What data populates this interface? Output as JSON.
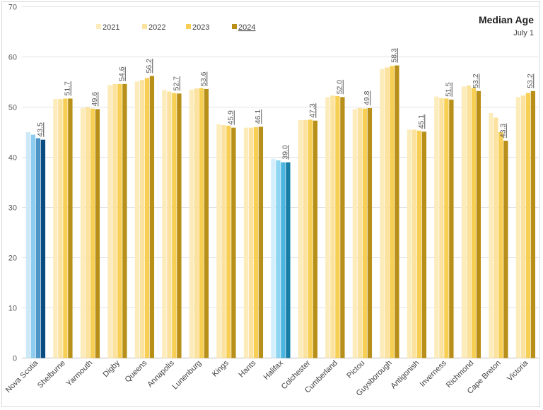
{
  "chart_data": {
    "type": "bar",
    "title": "Median Age",
    "subtitle": "July 1",
    "xlabel": "",
    "ylabel": "",
    "ylim": [
      0,
      70
    ],
    "yticks": [
      0,
      10,
      20,
      30,
      40,
      50,
      60,
      70
    ],
    "grid": true,
    "legend_position": "top-center",
    "categories": [
      "Nova Scotia",
      "Shelburne",
      "Yarmouth",
      "Digby",
      "Queens",
      "Annapolis",
      "Lunenburg",
      "Kings",
      "Hants",
      "Halifax",
      "Colchester",
      "Cumberland",
      "Pictou",
      "Guysborough",
      "Antigonish",
      "Inverness",
      "Richmond",
      "Cape Breton",
      "Victoria"
    ],
    "series": [
      {
        "name": "2021",
        "values": [
          45.0,
          51.6,
          49.8,
          54.4,
          55.1,
          53.4,
          53.5,
          46.6,
          45.9,
          39.7,
          47.4,
          52.0,
          49.6,
          57.6,
          45.5,
          52.1,
          54.1,
          48.8,
          52.0
        ]
      },
      {
        "name": "2022",
        "values": [
          44.5,
          51.6,
          50.0,
          54.6,
          55.4,
          53.1,
          53.7,
          46.4,
          45.9,
          39.4,
          47.4,
          52.3,
          49.8,
          57.9,
          45.5,
          51.8,
          54.3,
          47.9,
          52.3
        ]
      },
      {
        "name": "2023",
        "values": [
          43.8,
          51.7,
          49.7,
          54.6,
          55.8,
          52.8,
          53.8,
          46.3,
          46.0,
          39.0,
          47.5,
          52.2,
          49.7,
          58.2,
          45.3,
          51.7,
          53.8,
          45.0,
          52.8
        ]
      },
      {
        "name": "2024",
        "values": [
          43.5,
          51.7,
          49.6,
          54.6,
          56.2,
          52.7,
          53.6,
          45.9,
          46.1,
          39.0,
          47.3,
          52.0,
          49.8,
          58.3,
          45.1,
          51.5,
          53.2,
          43.3,
          53.2
        ]
      }
    ],
    "data_labels_2024": [
      "43.5",
      "51.7",
      "49.6",
      "54.6",
      "56.2",
      "52.7",
      "53.6",
      "45.9",
      "46.1",
      "39.0",
      "47.3",
      "52.0",
      "49.8",
      "58.3",
      "45.1",
      "51.5",
      "53.2",
      "43.3",
      "53.2"
    ],
    "colors": {
      "default": [
        "#fcecbc",
        "#fbe29f",
        "#f7cf55",
        "#b88f19"
      ],
      "Nova Scotia": [
        "#cde9f8",
        "#8fcdf0",
        "#4d94c7",
        "#0b4c80"
      ],
      "Halifax": [
        "#d4effb",
        "#8fd6f3",
        "#4bb5df",
        "#177ea7"
      ]
    }
  }
}
